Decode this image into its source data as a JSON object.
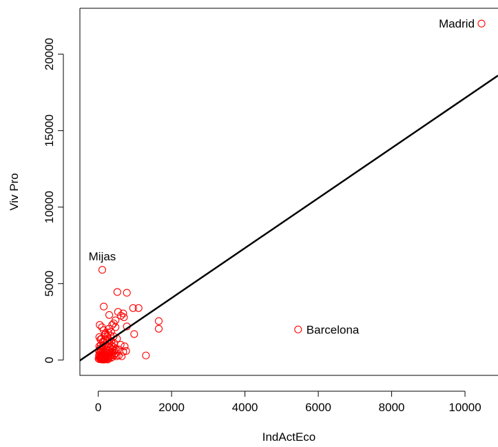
{
  "chart_data": {
    "type": "scatter",
    "title": "",
    "xlabel": "IndActEco",
    "ylabel": "Viv Pro",
    "xlim": [
      -500,
      10900
    ],
    "ylim": [
      -1000,
      23000
    ],
    "xticks": [
      "0",
      "2000",
      "4000",
      "6000",
      "8000",
      "10000"
    ],
    "yticks": [
      "0",
      "5000",
      "10000",
      "15000",
      "20000"
    ],
    "point_color": "#ff0000",
    "regression_line": {
      "x": [
        -500,
        10900
      ],
      "y": [
        -30,
        18600
      ],
      "color": "#000000"
    },
    "annotations": [
      {
        "label": "Madrid",
        "x": 10450,
        "y": 22000,
        "side": "left"
      },
      {
        "label": "Barcelona",
        "x": 5450,
        "y": 2000,
        "side": "right"
      },
      {
        "label": "Mijas",
        "x": 110,
        "y": 5900,
        "side": "above"
      }
    ],
    "points": [
      {
        "x": 10450,
        "y": 22000
      },
      {
        "x": 5450,
        "y": 2000
      },
      {
        "x": 110,
        "y": 5900
      },
      {
        "x": 150,
        "y": 3500
      },
      {
        "x": 520,
        "y": 4450
      },
      {
        "x": 780,
        "y": 4400
      },
      {
        "x": 950,
        "y": 3400
      },
      {
        "x": 1100,
        "y": 3400
      },
      {
        "x": 680,
        "y": 3050
      },
      {
        "x": 540,
        "y": 3150
      },
      {
        "x": 1650,
        "y": 2550
      },
      {
        "x": 1650,
        "y": 2050
      },
      {
        "x": 980,
        "y": 1700
      },
      {
        "x": 1300,
        "y": 300
      },
      {
        "x": 700,
        "y": 2800
      },
      {
        "x": 420,
        "y": 2400
      },
      {
        "x": 380,
        "y": 2300
      },
      {
        "x": 300,
        "y": 2950
      },
      {
        "x": 620,
        "y": 2900
      },
      {
        "x": 780,
        "y": 2200
      },
      {
        "x": 470,
        "y": 2600
      },
      {
        "x": 40,
        "y": 2300
      },
      {
        "x": 100,
        "y": 2150
      },
      {
        "x": 150,
        "y": 1950
      },
      {
        "x": 200,
        "y": 1750
      },
      {
        "x": 270,
        "y": 1800
      },
      {
        "x": 330,
        "y": 1600
      },
      {
        "x": 420,
        "y": 1550
      },
      {
        "x": 510,
        "y": 1400
      },
      {
        "x": 610,
        "y": 1000
      },
      {
        "x": 720,
        "y": 900
      },
      {
        "x": 760,
        "y": 600
      },
      {
        "x": 680,
        "y": 550
      },
      {
        "x": 560,
        "y": 300
      },
      {
        "x": 640,
        "y": 250
      },
      {
        "x": 30,
        "y": 1500
      },
      {
        "x": 60,
        "y": 1350
      },
      {
        "x": 90,
        "y": 1400
      },
      {
        "x": 120,
        "y": 1200
      },
      {
        "x": 150,
        "y": 1150
      },
      {
        "x": 180,
        "y": 1350
      },
      {
        "x": 210,
        "y": 1000
      },
      {
        "x": 240,
        "y": 1250
      },
      {
        "x": 270,
        "y": 900
      },
      {
        "x": 300,
        "y": 1100
      },
      {
        "x": 330,
        "y": 800
      },
      {
        "x": 360,
        "y": 950
      },
      {
        "x": 390,
        "y": 700
      },
      {
        "x": 420,
        "y": 850
      },
      {
        "x": 450,
        "y": 600
      },
      {
        "x": 480,
        "y": 750
      },
      {
        "x": 30,
        "y": 900
      },
      {
        "x": 50,
        "y": 750
      },
      {
        "x": 70,
        "y": 950
      },
      {
        "x": 90,
        "y": 650
      },
      {
        "x": 110,
        "y": 850
      },
      {
        "x": 130,
        "y": 550
      },
      {
        "x": 160,
        "y": 700
      },
      {
        "x": 190,
        "y": 500
      },
      {
        "x": 220,
        "y": 650
      },
      {
        "x": 250,
        "y": 450
      },
      {
        "x": 280,
        "y": 600
      },
      {
        "x": 310,
        "y": 400
      },
      {
        "x": 340,
        "y": 550
      },
      {
        "x": 370,
        "y": 350
      },
      {
        "x": 400,
        "y": 500
      },
      {
        "x": 430,
        "y": 300
      },
      {
        "x": 460,
        "y": 450
      },
      {
        "x": 500,
        "y": 250
      },
      {
        "x": 20,
        "y": 600
      },
      {
        "x": 40,
        "y": 450
      },
      {
        "x": 60,
        "y": 550
      },
      {
        "x": 80,
        "y": 350
      },
      {
        "x": 100,
        "y": 450
      },
      {
        "x": 120,
        "y": 300
      },
      {
        "x": 140,
        "y": 400
      },
      {
        "x": 170,
        "y": 250
      },
      {
        "x": 200,
        "y": 350
      },
      {
        "x": 230,
        "y": 200
      },
      {
        "x": 260,
        "y": 300
      },
      {
        "x": 290,
        "y": 150
      },
      {
        "x": 320,
        "y": 250
      },
      {
        "x": 350,
        "y": 150
      },
      {
        "x": 380,
        "y": 200
      },
      {
        "x": 20,
        "y": 300
      },
      {
        "x": 40,
        "y": 200
      },
      {
        "x": 60,
        "y": 250
      },
      {
        "x": 80,
        "y": 150
      },
      {
        "x": 100,
        "y": 200
      },
      {
        "x": 120,
        "y": 100
      },
      {
        "x": 140,
        "y": 150
      },
      {
        "x": 160,
        "y": 80
      },
      {
        "x": 180,
        "y": 120
      },
      {
        "x": 10,
        "y": 100
      },
      {
        "x": 30,
        "y": 60
      },
      {
        "x": 50,
        "y": 120
      },
      {
        "x": 70,
        "y": 50
      },
      {
        "x": 90,
        "y": 80
      },
      {
        "x": 110,
        "y": 40
      },
      {
        "x": 130,
        "y": 70
      },
      {
        "x": 150,
        "y": 30
      },
      {
        "x": 170,
        "y": 60
      },
      {
        "x": 200,
        "y": 50
      },
      {
        "x": 230,
        "y": 80
      },
      {
        "x": 260,
        "y": 40
      },
      {
        "x": 310,
        "y": 1300
      },
      {
        "x": 250,
        "y": 1550
      },
      {
        "x": 180,
        "y": 1650
      },
      {
        "x": 360,
        "y": 1250
      },
      {
        "x": 440,
        "y": 1100
      },
      {
        "x": 550,
        "y": 700
      },
      {
        "x": 470,
        "y": 2150
      },
      {
        "x": 350,
        "y": 1850
      },
      {
        "x": 290,
        "y": 2050
      }
    ]
  }
}
